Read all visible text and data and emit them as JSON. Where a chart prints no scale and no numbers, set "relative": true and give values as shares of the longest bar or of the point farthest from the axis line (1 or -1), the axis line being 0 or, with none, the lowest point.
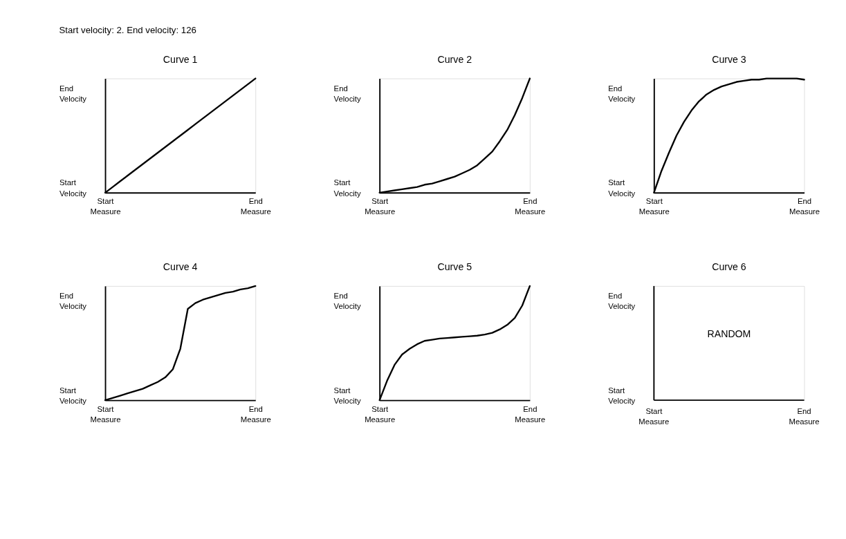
{
  "chart_data": [
    {
      "type": "line",
      "title": "Curve 1",
      "relative": true,
      "annotations": [
        "Start Velocity",
        "End Velocity",
        "Start velocity: 2. End velocity: 126"
      ],
      "grid": false,
      "categories": [
        "Start Measure",
        null,
        null,
        null,
        null,
        null,
        null,
        null,
        null,
        null,
        null,
        null,
        null,
        null,
        null,
        null,
        null,
        null,
        null,
        null,
        "End Measure"
      ],
      "series": [
        {
          "color": "#000000",
          "values": [
            0,
            0.05,
            0.1,
            0.15,
            0.2,
            0.25,
            0.3,
            0.35,
            0.4,
            0.45,
            0.5,
            0.55,
            0.6,
            0.65,
            0.7,
            0.75,
            0.8,
            0.85,
            0.9,
            0.95,
            1
          ]
        }
      ]
    },
    {
      "type": "line",
      "title": "Curve 2",
      "relative": true,
      "annotations": [
        "Start Velocity",
        "End Velocity"
      ],
      "grid": false,
      "categories": [
        "Start Measure",
        null,
        null,
        null,
        null,
        null,
        null,
        null,
        null,
        null,
        null,
        null,
        null,
        null,
        null,
        null,
        null,
        null,
        null,
        null,
        "End Measure"
      ],
      "series": [
        {
          "color": "#000000",
          "values": [
            0,
            0.01,
            0.02,
            0.03,
            0.04,
            0.05,
            0.07,
            0.08,
            0.1,
            0.12,
            0.14,
            0.17,
            0.2,
            0.24,
            0.3,
            0.36,
            0.45,
            0.55,
            0.68,
            0.83,
            1
          ]
        }
      ]
    },
    {
      "type": "line",
      "title": "Curve 3",
      "relative": true,
      "annotations": [
        "Start Velocity",
        "End Velocity"
      ],
      "grid": false,
      "categories": [
        "Start Measure",
        null,
        null,
        null,
        null,
        null,
        null,
        null,
        null,
        null,
        null,
        null,
        null,
        null,
        null,
        null,
        null,
        null,
        null,
        null,
        "End Measure"
      ],
      "series": [
        {
          "color": "#000000",
          "values": [
            0,
            0.19,
            0.35,
            0.5,
            0.62,
            0.72,
            0.8,
            0.86,
            0.9,
            0.93,
            0.95,
            0.97,
            0.98,
            0.99,
            0.99,
            1,
            1,
            1,
            1,
            1,
            0.99
          ]
        }
      ]
    },
    {
      "type": "line",
      "title": "Curve 4",
      "relative": true,
      "annotations": [
        "Start Velocity",
        "End Velocity"
      ],
      "grid": false,
      "categories": [
        "Start Measure",
        null,
        null,
        null,
        null,
        null,
        null,
        null,
        null,
        null,
        null,
        null,
        null,
        null,
        null,
        null,
        null,
        null,
        null,
        null,
        "End Measure"
      ],
      "series": [
        {
          "color": "#000000",
          "values": [
            0,
            0.02,
            0.04,
            0.06,
            0.08,
            0.1,
            0.13,
            0.16,
            0.2,
            0.27,
            0.45,
            0.8,
            0.85,
            0.88,
            0.9,
            0.92,
            0.94,
            0.95,
            0.97,
            0.98,
            1
          ]
        }
      ]
    },
    {
      "type": "line",
      "title": "Curve 5",
      "relative": true,
      "annotations": [
        "Start Velocity",
        "End Velocity"
      ],
      "grid": false,
      "categories": [
        "Start Measure",
        null,
        null,
        null,
        null,
        null,
        null,
        null,
        null,
        null,
        null,
        null,
        null,
        null,
        null,
        null,
        null,
        null,
        null,
        null,
        "End Measure"
      ],
      "series": [
        {
          "color": "#000000",
          "values": [
            0,
            0.17,
            0.31,
            0.4,
            0.45,
            0.49,
            0.52,
            0.53,
            0.54,
            0.545,
            0.55,
            0.555,
            0.56,
            0.565,
            0.575,
            0.59,
            0.62,
            0.66,
            0.72,
            0.83,
            1
          ]
        }
      ]
    },
    {
      "type": "other",
      "title": "Curve 6",
      "annotations": [
        "Start Velocity",
        "End Velocity",
        "RANDOM",
        "Start Measure",
        "End Measure"
      ]
    }
  ]
}
